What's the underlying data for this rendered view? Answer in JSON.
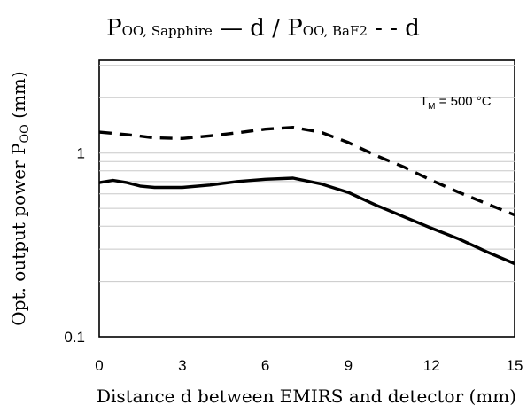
{
  "chart_data": {
    "type": "line",
    "title": {
      "main_1": "P",
      "sub_1": "OO, Sapphire",
      "dash_1": " — d / ",
      "main_2": "P",
      "sub_2": "OO, BaF2",
      "dash_2": " - - d"
    },
    "xlabel": "Distance d between EMIRS and detector (mm)",
    "ylabel": {
      "main": "Opt. output power P",
      "sub": "OO",
      "unit": " (mm)"
    },
    "xlim": [
      0,
      15
    ],
    "ylim": [
      0.1,
      3.2
    ],
    "yscale": "log",
    "x_ticks": [
      "0",
      "3",
      "6",
      "9",
      "12",
      "15"
    ],
    "y_ticks": [
      "0.1",
      "1"
    ],
    "annotation": {
      "main": "T",
      "sub": "M",
      "rest": " = 500 °C"
    },
    "series": [
      {
        "line_style": "solid",
        "color": "#000000",
        "x": [
          0,
          0.5,
          1,
          1.5,
          2,
          3,
          4,
          5,
          6,
          7,
          8,
          9,
          10,
          11,
          12,
          13,
          14,
          15
        ],
        "y": [
          0.69,
          0.71,
          0.69,
          0.66,
          0.65,
          0.65,
          0.67,
          0.7,
          0.72,
          0.73,
          0.68,
          0.61,
          0.52,
          0.45,
          0.39,
          0.34,
          0.29,
          0.25
        ]
      },
      {
        "line_style": "dashed",
        "color": "#000000",
        "x": [
          0,
          1,
          2,
          3,
          4,
          5,
          6,
          7,
          8,
          9,
          10,
          11,
          12,
          13,
          14,
          15
        ],
        "y": [
          1.3,
          1.26,
          1.21,
          1.2,
          1.24,
          1.29,
          1.35,
          1.38,
          1.3,
          1.14,
          0.97,
          0.84,
          0.71,
          0.61,
          0.53,
          0.46
        ]
      }
    ],
    "grid": "horizontal minor log gridlines",
    "legend": "none"
  }
}
